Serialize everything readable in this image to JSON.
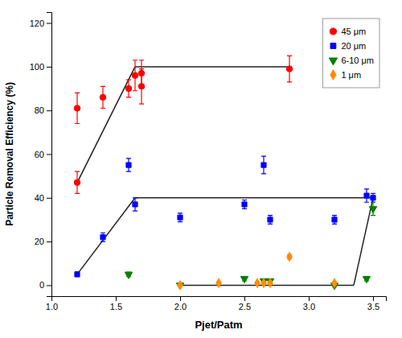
{
  "chart_data": {
    "type": "scatter",
    "xlabel": "Pjet/Patm",
    "ylabel": "Particle Removal Efficiency (%)",
    "xlim": [
      1.0,
      3.6
    ],
    "ylim": [
      -5,
      125
    ],
    "xticks": [
      {
        "value": 1.0,
        "label": "1.0"
      },
      1.5,
      {
        "value": 2.0,
        "label": "2.0"
      },
      2.5,
      {
        "value": 3.0,
        "label": "3.0"
      },
      3.5
    ],
    "yticks": [
      0,
      20,
      40,
      60,
      80,
      100,
      120
    ],
    "legend": "upper right",
    "series": [
      {
        "name": "45 μm",
        "color": "#FF0000",
        "marker": "circle",
        "x": [
          1.2,
          1.2,
          1.4,
          1.6,
          1.65,
          1.7,
          1.7,
          2.85
        ],
        "values": [
          47,
          81,
          86,
          90,
          96,
          97,
          91,
          99
        ],
        "errors": [
          5,
          7,
          5,
          4,
          7,
          6,
          8,
          6
        ]
      },
      {
        "name": "20 μm",
        "color": "#0000FF",
        "marker": "square",
        "x": [
          1.2,
          1.4,
          1.6,
          1.65,
          2.0,
          2.5,
          2.65,
          2.7,
          3.2,
          3.45,
          3.5
        ],
        "values": [
          5,
          22,
          55,
          37,
          31,
          37,
          55,
          30,
          30,
          41,
          40
        ],
        "errors": [
          1,
          2,
          3,
          3,
          2,
          2,
          4,
          2,
          2,
          3,
          2
        ]
      },
      {
        "name": "6-10 μm",
        "color": "#008000",
        "marker": "triangle-down",
        "x": [
          1.6,
          2.0,
          2.5,
          2.65,
          2.7,
          3.2,
          3.45,
          3.5
        ],
        "values": [
          5,
          0,
          3,
          2,
          2,
          0,
          3,
          35
        ],
        "errors": [
          1,
          0.5,
          1,
          0.5,
          0.5,
          0.5,
          1,
          3
        ]
      },
      {
        "name": "1 μm",
        "color": "#FF8C00",
        "marker": "diamond",
        "x": [
          2.0,
          2.3,
          2.6,
          2.65,
          2.7,
          2.85,
          3.2
        ],
        "values": [
          0,
          1,
          1,
          1,
          1,
          13,
          1
        ],
        "errors": [
          0.5,
          0.5,
          0.5,
          0.5,
          0.5,
          1,
          0.5
        ]
      },
      {
        "type": "line",
        "color": "#222222",
        "x": [
          1.2,
          1.65
        ],
        "values": [
          47,
          100
        ]
      },
      {
        "type": "line",
        "color": "#222222",
        "x": [
          1.65,
          2.85
        ],
        "values": [
          100,
          100
        ]
      },
      {
        "type": "line",
        "color": "#222222",
        "x": [
          1.2,
          1.65
        ],
        "values": [
          5,
          40
        ]
      },
      {
        "type": "line",
        "color": "#222222",
        "x": [
          1.65,
          3.5
        ],
        "values": [
          40,
          40
        ]
      },
      {
        "type": "line",
        "color": "#222222",
        "x": [
          2.0,
          3.35
        ],
        "values": [
          0,
          0
        ]
      },
      {
        "type": "line",
        "color": "#222222",
        "x": [
          3.35,
          3.5
        ],
        "values": [
          0,
          40
        ]
      }
    ]
  }
}
